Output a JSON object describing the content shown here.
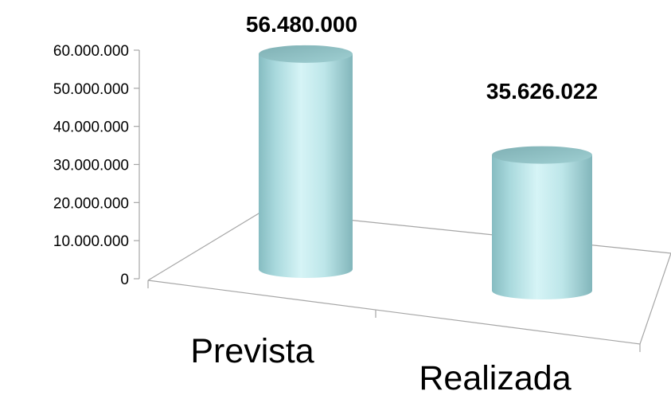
{
  "chart_data": {
    "type": "bar",
    "style": "3d-cylinder",
    "categories": [
      "Prevista",
      "Realizada"
    ],
    "values": [
      56480000,
      35626022
    ],
    "data_labels": [
      "56.480.000",
      "35.626.022"
    ],
    "ylim": [
      0,
      60000000
    ],
    "y_ticks": [
      0,
      10000000,
      20000000,
      30000000,
      40000000,
      50000000,
      60000000
    ],
    "y_tick_labels": [
      "0",
      "10.000.000",
      "20.000.000",
      "30.000.000",
      "40.000.000",
      "50.000.000",
      "60.000.000"
    ],
    "title": "",
    "xlabel": "",
    "ylabel": "",
    "grid": false,
    "legend": "none",
    "bar_color": "#c5ecef"
  }
}
